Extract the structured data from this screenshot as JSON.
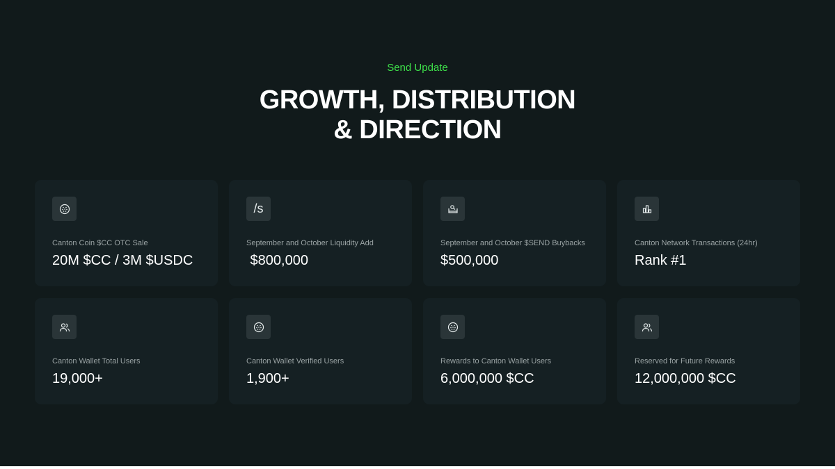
{
  "header": {
    "eyebrow": "Send Update",
    "title_line1": "GROWTH, DISTRIBUTION",
    "title_line2": "& DIRECTION"
  },
  "colors": {
    "accent": "#3ee04a",
    "background": "#111a1b",
    "card": "#152023"
  },
  "cards": [
    {
      "icon": "coin-icon",
      "label": "Canton Coin $CC OTC Sale",
      "value": "20M $CC / 3M $USDC"
    },
    {
      "icon": "slash-s-icon",
      "icon_text": "/s",
      "label": "September and October Liquidity Add",
      "value": " $800,000"
    },
    {
      "icon": "buyback-icon",
      "label": "September and October $SEND Buybacks",
      "value": "$500,000"
    },
    {
      "icon": "bar-chart-icon",
      "label": "Canton Network Transactions (24hr)",
      "value": "Rank #1"
    },
    {
      "icon": "users-icon",
      "label": "Canton Wallet Total Users",
      "value": "19,000+"
    },
    {
      "icon": "coin-icon",
      "label": "Canton Wallet Verified Users",
      "value": "1,900+"
    },
    {
      "icon": "coin-icon",
      "label": "Rewards to Canton Wallet Users",
      "value": "6,000,000 $CC"
    },
    {
      "icon": "users-icon",
      "label": "Reserved for Future Rewards",
      "value": "12,000,000 $CC"
    }
  ]
}
